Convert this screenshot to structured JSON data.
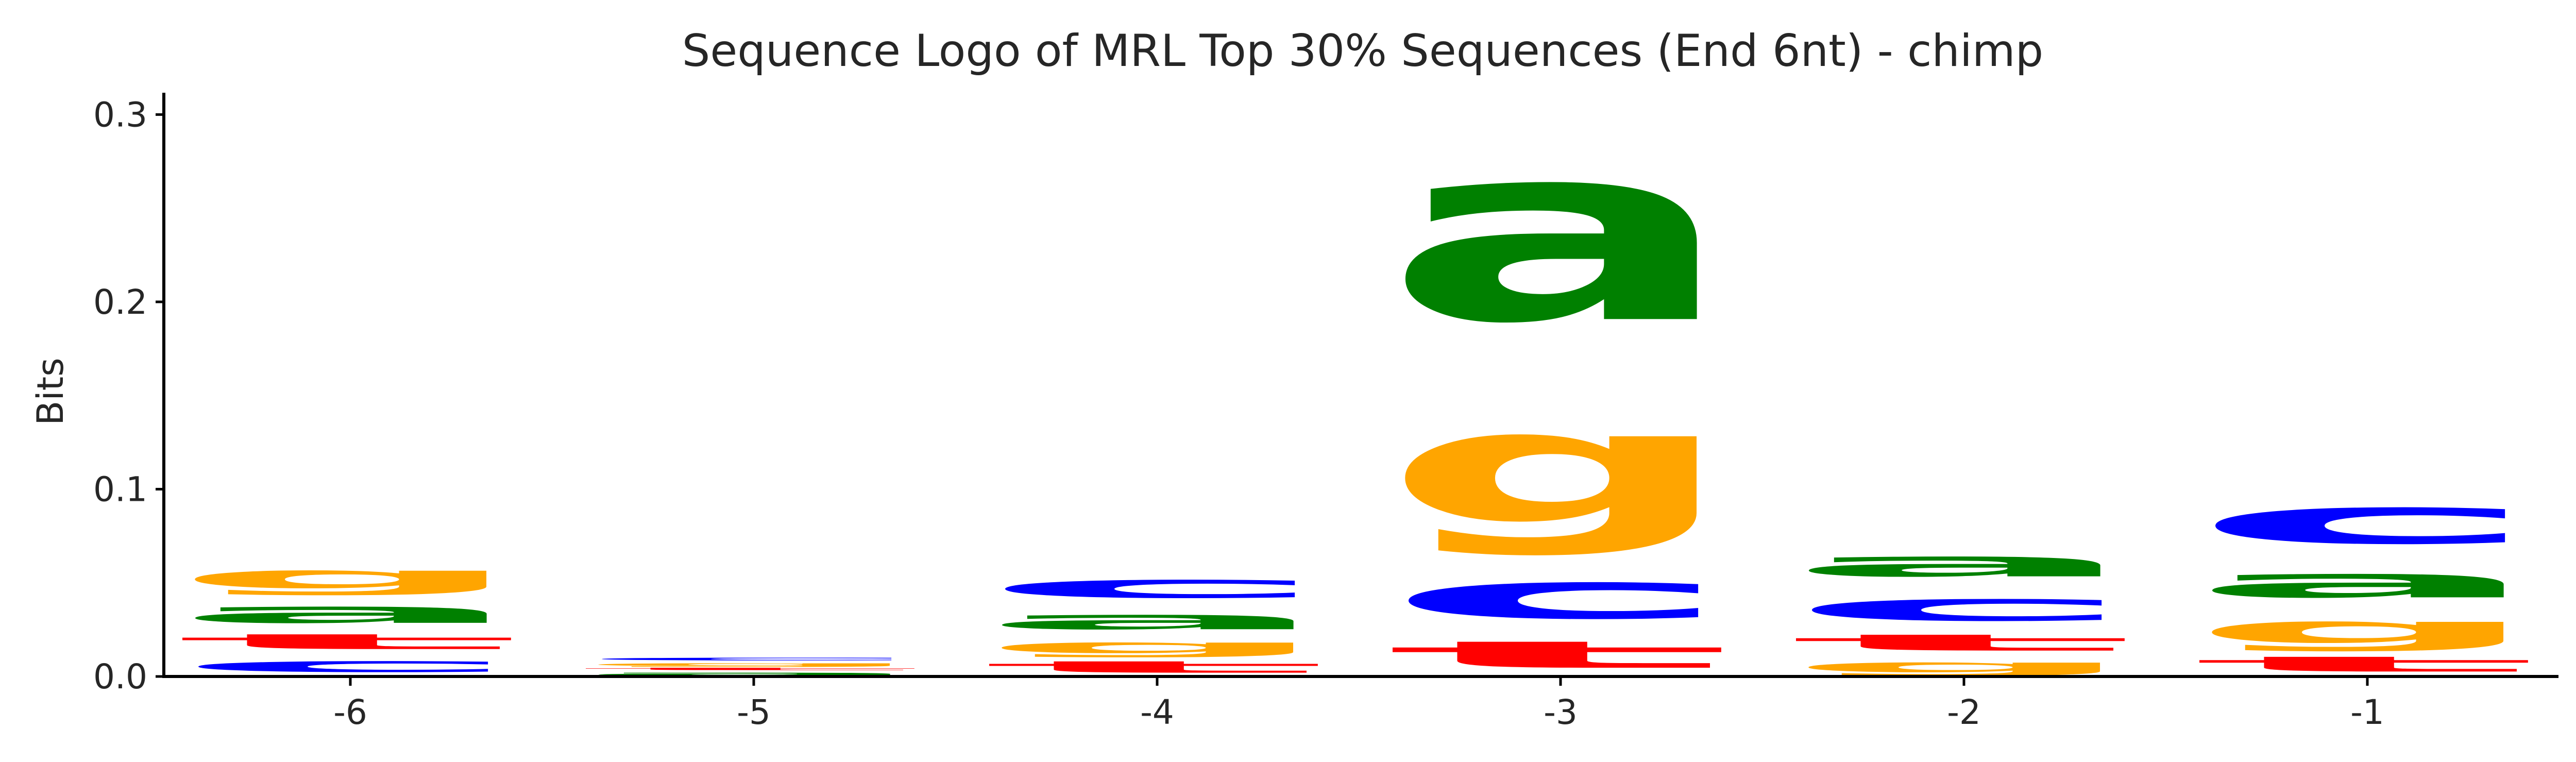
{
  "chart_data": {
    "type": "sequence-logo",
    "title": "Sequence Logo of MRL Top 30% Sequences (End 6nt) - chimp",
    "xlabel": "",
    "ylabel": "Bits",
    "ylim": [
      0,
      0.315
    ],
    "yticks": [
      {
        "value": 0.0,
        "label": "0.0"
      },
      {
        "value": 0.1,
        "label": "0.1"
      },
      {
        "value": 0.2,
        "label": "0.2"
      },
      {
        "value": 0.3,
        "label": "0.3"
      }
    ],
    "grid": false,
    "letter_colors": {
      "a": "#008000",
      "c": "#0000ff",
      "g": "#ffa500",
      "t": "#ff0000"
    },
    "positions": [
      {
        "label": "-6",
        "stack": [
          {
            "letter": "c",
            "bits": 0.012
          },
          {
            "letter": "t",
            "bits": 0.013
          },
          {
            "letter": "a",
            "bits": 0.018
          },
          {
            "letter": "g",
            "bits": 0.02
          }
        ]
      },
      {
        "label": "-5",
        "stack": [
          {
            "letter": "a",
            "bits": 0.003
          },
          {
            "letter": "t",
            "bits": 0.002
          },
          {
            "letter": "g",
            "bits": 0.003
          },
          {
            "letter": "c",
            "bits": 0.003
          }
        ]
      },
      {
        "label": "-4",
        "stack": [
          {
            "letter": "t",
            "bits": 0.01
          },
          {
            "letter": "g",
            "bits": 0.012
          },
          {
            "letter": "a",
            "bits": 0.016
          },
          {
            "letter": "c",
            "bits": 0.02
          }
        ]
      },
      {
        "label": "-3",
        "stack": [
          {
            "letter": "t",
            "bits": 0.023
          },
          {
            "letter": "c",
            "bits": 0.04
          },
          {
            "letter": "g",
            "bits": 0.097
          },
          {
            "letter": "a",
            "bits": 0.152
          }
        ]
      },
      {
        "label": "-2",
        "stack": [
          {
            "letter": "g",
            "bits": 0.011
          },
          {
            "letter": "t",
            "bits": 0.014
          },
          {
            "letter": "c",
            "bits": 0.024
          },
          {
            "letter": "a",
            "bits": 0.022
          }
        ]
      },
      {
        "label": "-1",
        "stack": [
          {
            "letter": "t",
            "bits": 0.013
          },
          {
            "letter": "g",
            "bits": 0.024
          },
          {
            "letter": "a",
            "bits": 0.026
          },
          {
            "letter": "c",
            "bits": 0.04
          }
        ]
      }
    ]
  }
}
